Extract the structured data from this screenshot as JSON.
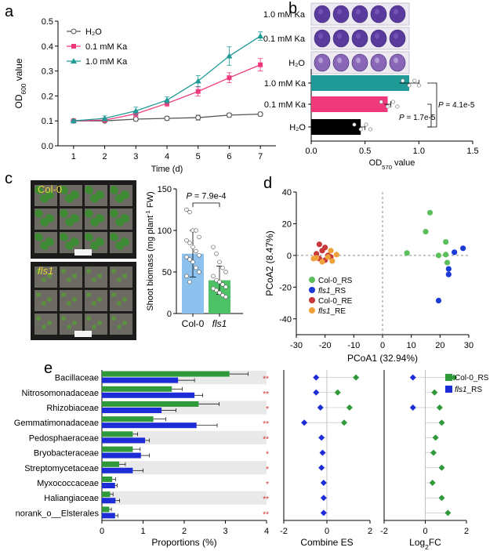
{
  "panel_labels": [
    "a",
    "b",
    "c",
    "d",
    "e"
  ],
  "colors": {
    "h2o": "#555555",
    "ka01": "#f0397b",
    "ka10": "#1f9a96",
    "col0": "#2e9a39",
    "fls1": "#1c2cd6",
    "col0_rs": "#5bbf5b",
    "fls1_rs": "#1b3bd6",
    "col0_re": "#c8383b",
    "fls1_re": "#f0a23a",
    "bar_col0": "#8ec2ee",
    "bar_fls1": "#4cc165",
    "bar_h2o": "#000000",
    "sig": "#d62d2d"
  },
  "chart_data": [
    {
      "id": "a",
      "type": "line",
      "xlabel": "Time (d)",
      "ylabel_main": "OD",
      "ylabel_sub": "600",
      "ylabel_suffix": " value",
      "x": [
        1,
        2,
        3,
        4,
        5,
        6,
        7
      ],
      "xlim": [
        0.5,
        7.5
      ],
      "ylim": [
        0,
        0.5
      ],
      "yticks": [
        0,
        0.1,
        0.2,
        0.3,
        0.4,
        0.5
      ],
      "yticklabels": [
        "0.0",
        "0.1",
        "0.2",
        "0.3",
        "0.4",
        "0.5"
      ],
      "series": [
        {
          "name": "H₂O",
          "values": [
            0.1,
            0.1,
            0.107,
            0.11,
            0.113,
            0.123,
            0.127
          ],
          "err": [
            0.004,
            0.005,
            0.008,
            0.008,
            0.01,
            0.008,
            0.008
          ],
          "marker": "circle",
          "color": "#555555"
        },
        {
          "name": "0.1 mM Ka",
          "values": [
            0.1,
            0.103,
            0.128,
            0.17,
            0.218,
            0.273,
            0.325
          ],
          "err": [
            0.005,
            0.008,
            0.012,
            0.012,
            0.018,
            0.02,
            0.025
          ],
          "marker": "square",
          "color": "#f0397b"
        },
        {
          "name": "1.0 mM Ka",
          "values": [
            0.1,
            0.11,
            0.14,
            0.183,
            0.26,
            0.36,
            0.44
          ],
          "err": [
            0.005,
            0.01,
            0.015,
            0.013,
            0.022,
            0.037,
            0.017
          ],
          "marker": "triangle",
          "color": "#1f9a96"
        }
      ]
    },
    {
      "id": "b",
      "type": "bar",
      "orientation": "horizontal",
      "categories": [
        "1.0 mM Ka",
        "0.1 mM Ka",
        "H₂O"
      ],
      "image_labels": [
        "1.0 mM Ka",
        "0.1 mM Ka",
        "H₂O"
      ],
      "values": [
        0.91,
        0.71,
        0.46
      ],
      "err": [
        0.09,
        0.03,
        0.04
      ],
      "xlabel_main": "OD",
      "xlabel_sub": "570",
      "xlabel_suffix": " value",
      "xlim": [
        0,
        1.5
      ],
      "xticks": [
        0,
        0.5,
        1,
        1.5
      ],
      "xticklabels": [
        "0.0",
        "0.5",
        "1.0",
        "1.5"
      ],
      "pvalues": [
        "P = 1.7e-5",
        "P = 4.1e-5"
      ]
    },
    {
      "id": "c",
      "type": "bar",
      "categories": [
        "Col-0",
        "fls1"
      ],
      "image_labels": [
        "Col-0",
        "fls1"
      ],
      "values": [
        72,
        40
      ],
      "err": [
        28,
        17
      ],
      "points": [
        [
          125,
          122,
          100,
          100,
          92,
          88,
          85,
          80,
          75,
          70,
          68,
          65,
          62,
          55,
          50,
          45,
          38
        ],
        [
          80,
          72,
          62,
          55,
          50,
          45,
          40,
          38,
          35,
          32,
          30,
          28,
          25,
          22,
          20
        ]
      ],
      "ylabel": "Shoot biomass (mg plant",
      "ylabel_sup": "-1",
      "ylabel_suffix": " FW)",
      "ylim": [
        0,
        150
      ],
      "yticks": [
        0,
        50,
        100,
        150
      ],
      "pvalue": "P = 7.9e-4"
    },
    {
      "id": "d",
      "type": "scatter",
      "xlabel": "PCoA1 (32.94%)",
      "ylabel": "PCoA2 (8.47%)",
      "xlim": [
        -30,
        30
      ],
      "ylim": [
        -50,
        40
      ],
      "xticks": [
        -30,
        -20,
        -10,
        0,
        10,
        20,
        30
      ],
      "yticks": [
        -40,
        -20,
        0,
        20,
        40
      ],
      "series": [
        {
          "name": "Col-0_RS",
          "color": "#5bbf5b",
          "points": [
            [
              16.5,
              27
            ],
            [
              15,
              15
            ],
            [
              22,
              8.5
            ],
            [
              8.5,
              1.5
            ],
            [
              19.5,
              0
            ],
            [
              22,
              0.5
            ],
            [
              22.5,
              -4.5
            ]
          ]
        },
        {
          "name": "fls1_RS",
          "color": "#1b3bd6",
          "points": [
            [
              28,
              4.5
            ],
            [
              25,
              2
            ],
            [
              23,
              -8.5
            ],
            [
              23,
              -12
            ],
            [
              19.5,
              -28.5
            ]
          ]
        },
        {
          "name": "Col-0_RE",
          "color": "#c8383b",
          "points": [
            [
              -22,
              7
            ],
            [
              -20,
              5
            ],
            [
              -21,
              3
            ],
            [
              -23,
              1
            ],
            [
              -19,
              0
            ],
            [
              -22,
              -2
            ],
            [
              -18,
              -1
            ],
            [
              -20,
              -3
            ]
          ]
        },
        {
          "name": "fls1_RE",
          "color": "#f0a23a",
          "points": [
            [
              -18,
              3
            ],
            [
              -16,
              0.5
            ],
            [
              -19,
              -1
            ],
            [
              -23,
              -1.5
            ],
            [
              -21,
              -4
            ],
            [
              -17.5,
              -3.5
            ],
            [
              -24,
              -2
            ]
          ]
        }
      ]
    },
    {
      "id": "e",
      "type": "bar",
      "orientation": "horizontal",
      "categories": [
        "Bacillaceae",
        "Nitrosomonadaceae",
        "Rhizobiaceae",
        "Gemmatimonadaceae",
        "Pedosphaeraceae",
        "Bryobacteraceae",
        "Streptomycetaceae",
        "Myxococcaceae",
        "Haliangiaceae",
        "norank_o__Elsterales"
      ],
      "italic_prefix": [
        null,
        null,
        null,
        null,
        null,
        null,
        null,
        null,
        null,
        null
      ],
      "series": [
        {
          "name": "Col-0_RS",
          "values": [
            3.1,
            1.7,
            2.35,
            1.25,
            0.75,
            0.75,
            0.42,
            0.25,
            0.2,
            0.18
          ],
          "err": [
            0.45,
            0.25,
            0.5,
            0.3,
            0.12,
            0.18,
            0.15,
            0.08,
            0.07,
            0.05
          ],
          "color": "#2e9a39"
        },
        {
          "name": "fls1_RS",
          "values": [
            1.85,
            2.25,
            1.45,
            2.3,
            1.05,
            0.95,
            0.75,
            0.32,
            0.33,
            0.32
          ],
          "err": [
            0.4,
            0.2,
            0.35,
            0.5,
            0.1,
            0.2,
            0.25,
            0.05,
            0.1,
            0.07
          ],
          "color": "#1c2cd6"
        }
      ],
      "significance": [
        "**",
        "**",
        "*",
        "**",
        "**",
        "*",
        "*",
        "*",
        "**",
        "**"
      ],
      "xlabel": "Proportions (%)",
      "xlim": [
        0,
        4
      ],
      "xticks": [
        0,
        1,
        2,
        3,
        4
      ],
      "es": {
        "xlabel": "Combine ES",
        "xlim": [
          -2,
          2
        ],
        "xticks": [
          -2,
          0,
          2
        ],
        "points": [
          [
            1.35,
            -0.5
          ],
          [
            0.5,
            -0.5
          ],
          [
            1.05,
            -0.3
          ],
          [
            0.8,
            -1.05
          ],
          [
            -0.25
          ],
          [
            -0.2
          ],
          [
            -0.25
          ],
          [
            -0.15
          ],
          [
            -0.15
          ],
          [
            -0.15
          ]
        ]
      },
      "fc": {
        "xlabel_main": "Log",
        "xlabel_sub": "2",
        "xlabel_suffix": "FC",
        "xlim": [
          -2,
          2
        ],
        "xticks": [
          -2,
          0,
          2
        ],
        "points": [
          [
            1.4,
            -0.6
          ],
          [
            0.45
          ],
          [
            0.7,
            -0.6
          ],
          [
            0.8
          ],
          [
            0.5
          ],
          [
            0.4
          ],
          [
            0.8
          ],
          [
            0.35
          ],
          [
            0.8
          ],
          [
            1.1
          ]
        ]
      }
    }
  ]
}
